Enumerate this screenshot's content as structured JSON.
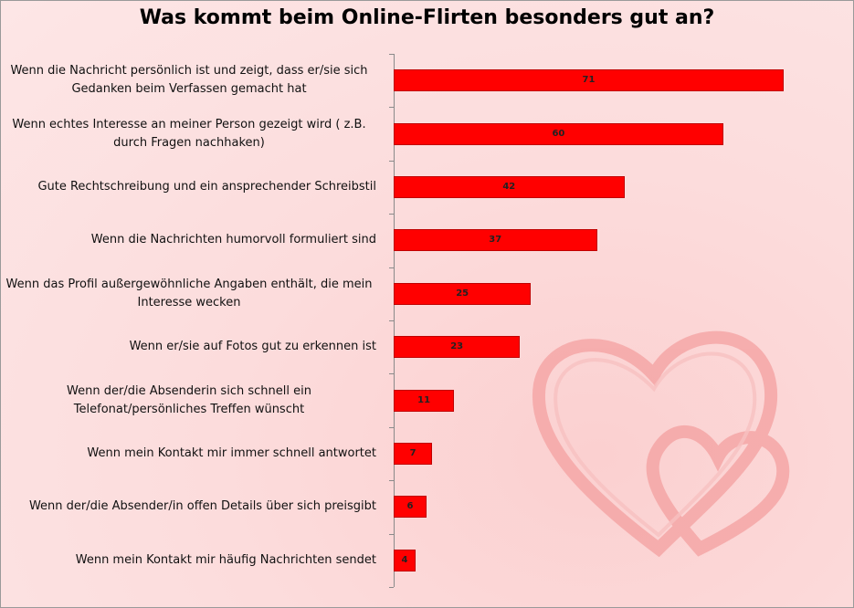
{
  "chart_data": {
    "type": "bar",
    "orientation": "horizontal",
    "title": "Was kommt beim Online-Flirten besonders gut an?",
    "categories": [
      "Wenn die Nachricht persönlich ist und zeigt,  dass er/sie sich Gedanken beim Verfassen gemacht hat",
      "Wenn echtes Interesse an meiner Person gezeigt wird ( z.B. durch Fragen  nachhaken)",
      "Gute Rechtschreibung und ein ansprechender Schreibstil",
      "Wenn die Nachrichten humorvoll formuliert sind",
      "Wenn das Profil außergewöhnliche Angaben enthält,  die mein Interesse wecken",
      "Wenn er/sie auf Fotos gut zu erkennen ist",
      "Wenn der/die Absenderin sich schnell ein Telefonat/persönliches Treffen wünscht",
      "Wenn mein Kontakt mir immer schnell antwortet",
      "Wenn der/die Absender/in offen Details über sich preisgibt",
      "Wenn mein Kontakt mir häufig Nachrichten sendet"
    ],
    "values": [
      71,
      60,
      42,
      37,
      25,
      23,
      11,
      7,
      6,
      4
    ],
    "color": "#ff0000"
  }
}
